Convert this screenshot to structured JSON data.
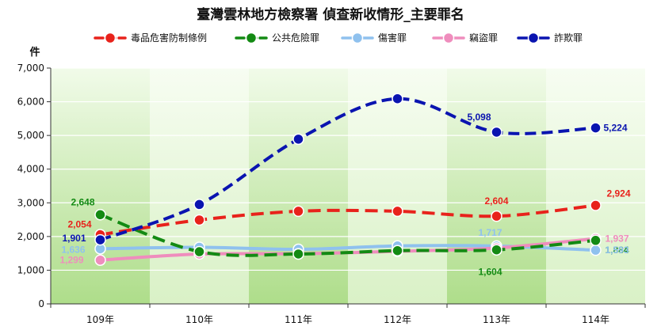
{
  "chart_data": {
    "type": "line",
    "title": "臺灣雲林地方檢察署  偵查新收情形_主要罪名",
    "ylabel": "件",
    "categories": [
      "109年",
      "110年",
      "111年",
      "112年",
      "113年",
      "114年"
    ],
    "ylim": [
      0,
      7000
    ],
    "yticks": [
      "0",
      "1,000",
      "2,000",
      "3,000",
      "4,000",
      "5,000",
      "6,000",
      "7,000"
    ],
    "grid": true,
    "legend_position": "top",
    "series": [
      {
        "name": "毒品危害防制條例",
        "color": "#e8221b",
        "values": [
          2054,
          2490,
          2750,
          2750,
          2604,
          2924
        ],
        "labels": [
          "2,054",
          "",
          "",
          "",
          "2,604",
          "2,924"
        ]
      },
      {
        "name": "公共危險罪",
        "color": "#138a13",
        "values": [
          2648,
          1550,
          1480,
          1580,
          1604,
          1884
        ],
        "labels": [
          "2,648",
          "",
          "",
          "",
          "1,604",
          "1,884"
        ]
      },
      {
        "name": "傷害罪",
        "color": "#8fc1ee",
        "values": [
          1636,
          1680,
          1620,
          1720,
          1717,
          1593
        ],
        "labels": [
          "1,636",
          "",
          "",
          "",
          "1,717",
          "1,593"
        ]
      },
      {
        "name": "竊盜罪",
        "color": "#ef8dbd",
        "values": [
          1299,
          1480,
          1490,
          1560,
          1660,
          1937
        ],
        "labels": [
          "1,299",
          "",
          "",
          "",
          "",
          "1,937"
        ]
      },
      {
        "name": "詐欺罪",
        "color": "#0a14b0",
        "values": [
          1901,
          2950,
          4890,
          6090,
          5098,
          5224
        ],
        "labels": [
          "1,901",
          "",
          "",
          "",
          "5,098",
          "5,224"
        ]
      }
    ]
  }
}
